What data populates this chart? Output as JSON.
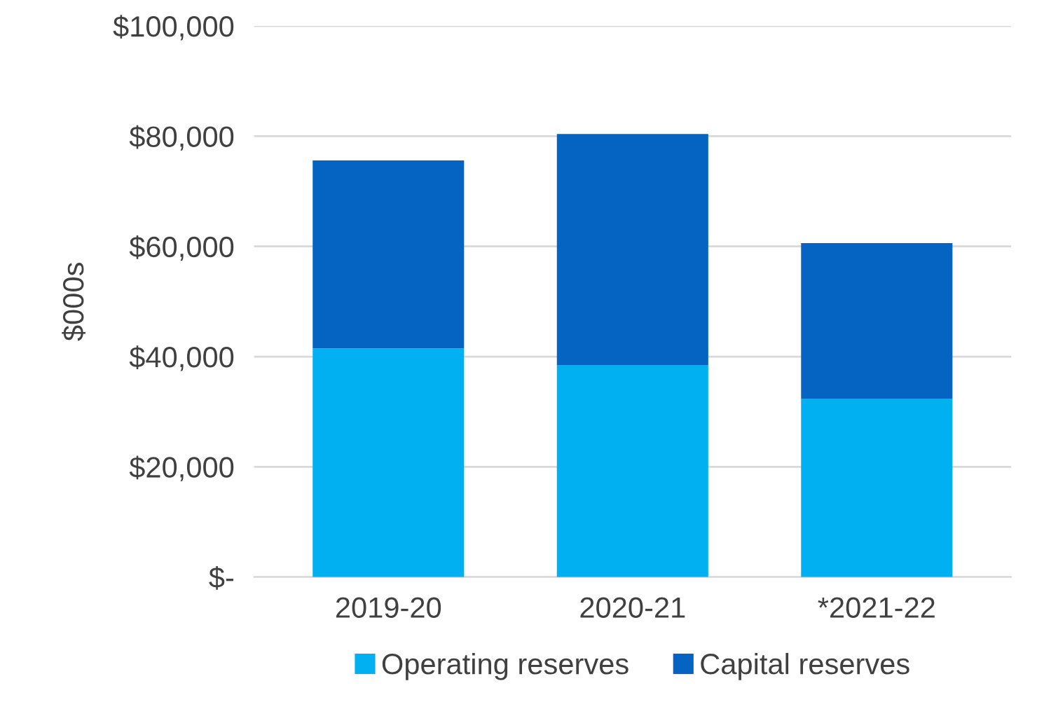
{
  "chart_data": {
    "type": "bar",
    "stacked": true,
    "ylabel": "$000s",
    "categories": [
      "2019-20",
      "2020-21",
      "*2021-22"
    ],
    "series": [
      {
        "name": "Operating reserves",
        "color": "#00b0f0",
        "values": [
          41500,
          38400,
          32300
        ]
      },
      {
        "name": "Capital reserves",
        "color": "#0563c1",
        "values": [
          34100,
          42000,
          28300
        ]
      }
    ],
    "ylim": [
      0,
      100000
    ],
    "yticks": [
      {
        "value": 0,
        "label": "$-"
      },
      {
        "value": 20000,
        "label": "$20,000"
      },
      {
        "value": 40000,
        "label": "$40,000"
      },
      {
        "value": 60000,
        "label": "$60,000"
      },
      {
        "value": 80000,
        "label": "$80,000"
      },
      {
        "value": 100000,
        "label": "$100,000"
      }
    ],
    "grid": "y",
    "legend": "bottom"
  }
}
